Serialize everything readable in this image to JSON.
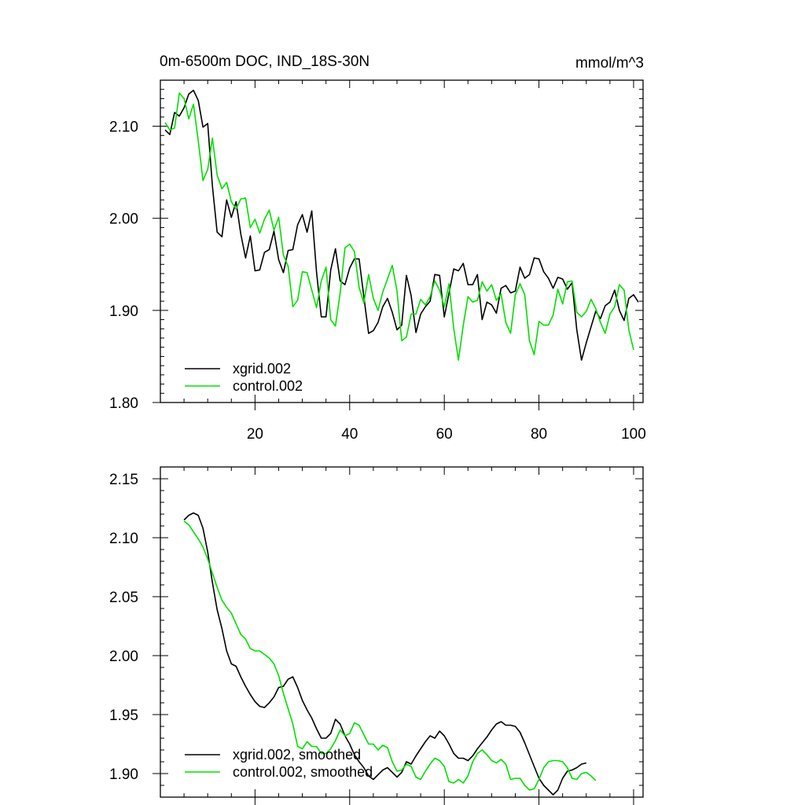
{
  "figure": {
    "title": "0m-6500m DOC, IND_18S-30N",
    "units": "mmol/m^3"
  },
  "colors": {
    "xgrid": "#000000",
    "control": "#00e000",
    "background": "#ffffff"
  },
  "chart_data": [
    {
      "type": "line",
      "title": "0m-6500m DOC, IND_18S-30N",
      "units_label": "mmol/m^3",
      "xlabel": "",
      "ylabel": "",
      "xlim": [
        0,
        102
      ],
      "ylim": [
        1.8,
        2.15
      ],
      "x_ticks": [
        20,
        40,
        60,
        80,
        100
      ],
      "x_tick_labels": [
        "20",
        "40",
        "60",
        "80",
        "100"
      ],
      "y_ticks": [
        1.8,
        1.9,
        2.0,
        2.1
      ],
      "y_tick_labels": [
        "1.80",
        "1.90",
        "2.00",
        "2.10"
      ],
      "legend_position": "bottom-left",
      "series": [
        {
          "name": "xgrid.002",
          "color": "#000000",
          "x_start": 1,
          "values": [
            2.096,
            2.091,
            2.115,
            2.111,
            2.12,
            2.135,
            2.139,
            2.128,
            2.099,
            2.103,
            2.035,
            1.985,
            1.98,
            2.02,
            2.001,
            2.018,
            1.983,
            1.957,
            1.981,
            1.943,
            1.944,
            1.963,
            1.966,
            1.986,
            1.955,
            1.941,
            1.965,
            1.966,
            1.993,
            2.004,
            1.985,
            2.008,
            1.942,
            1.893,
            1.893,
            1.944,
            1.967,
            1.932,
            1.928,
            1.946,
            1.956,
            1.956,
            1.915,
            1.875,
            1.878,
            1.887,
            1.904,
            1.913,
            1.898,
            1.879,
            1.884,
            1.938,
            1.916,
            1.876,
            1.896,
            1.904,
            1.91,
            1.939,
            1.938,
            1.893,
            1.919,
            1.945,
            1.943,
            1.951,
            1.928,
            1.928,
            1.939,
            1.89,
            1.909,
            1.906,
            1.897,
            1.924,
            1.927,
            1.919,
            1.921,
            1.947,
            1.935,
            1.939,
            1.957,
            1.956,
            1.942,
            1.935,
            1.924,
            1.936,
            1.934,
            1.923,
            1.93,
            1.879,
            1.846,
            1.865,
            1.882,
            1.899,
            1.891,
            1.905,
            1.909,
            1.922,
            1.9,
            1.889,
            1.913,
            1.917,
            1.909
          ]
        },
        {
          "name": "control.002",
          "color": "#00e000",
          "x_start": 1,
          "values": [
            2.104,
            2.096,
            2.098,
            2.136,
            2.13,
            2.108,
            2.124,
            2.084,
            2.041,
            2.053,
            2.087,
            2.047,
            2.032,
            2.039,
            2.018,
            2.01,
            2.021,
            2.022,
            1.99,
            1.999,
            1.984,
            1.999,
            2.009,
            1.987,
            2.001,
            1.96,
            1.948,
            1.904,
            1.911,
            1.942,
            1.941,
            1.922,
            1.903,
            1.932,
            1.947,
            1.89,
            1.883,
            1.919,
            1.968,
            1.972,
            1.964,
            1.925,
            1.908,
            1.939,
            1.913,
            1.9,
            1.92,
            1.934,
            1.949,
            1.921,
            1.867,
            1.871,
            1.896,
            1.896,
            1.912,
            1.906,
            1.915,
            1.932,
            1.922,
            1.904,
            1.929,
            1.88,
            1.846,
            1.884,
            1.915,
            1.909,
            1.911,
            1.931,
            1.921,
            1.928,
            1.911,
            1.918,
            1.887,
            1.875,
            1.917,
            1.929,
            1.917,
            1.867,
            1.852,
            1.888,
            1.884,
            1.884,
            1.895,
            1.923,
            1.907,
            1.931,
            1.932,
            1.898,
            1.893,
            1.899,
            1.912,
            1.902,
            1.887,
            1.875,
            1.896,
            1.904,
            1.928,
            1.922,
            1.879,
            1.857
          ]
        }
      ]
    },
    {
      "type": "line",
      "title": "",
      "xlabel": "",
      "ylabel": "",
      "xlim": [
        0,
        102
      ],
      "ylim": [
        1.88,
        2.16
      ],
      "x_ticks": [
        20,
        40,
        60,
        80,
        100
      ],
      "x_tick_labels": [
        "",
        "",
        "",
        "",
        ""
      ],
      "y_ticks": [
        1.9,
        1.95,
        2.0,
        2.05,
        2.1,
        2.15
      ],
      "y_tick_labels": [
        "1.90",
        "1.95",
        "2.00",
        "2.05",
        "2.10",
        "2.15"
      ],
      "legend_position": "bottom-left",
      "series": [
        {
          "name": "xgrid.002, smoothed",
          "color": "#000000",
          "x_start": 5,
          "values": [
            2.115,
            2.119,
            2.121,
            2.119,
            2.108,
            2.088,
            2.062,
            2.039,
            2.023,
            2.004,
            1.993,
            1.991,
            1.982,
            1.974,
            1.967,
            1.961,
            1.957,
            1.956,
            1.96,
            1.965,
            1.973,
            1.974,
            1.98,
            1.982,
            1.973,
            1.962,
            1.954,
            1.947,
            1.938,
            1.93,
            1.93,
            1.934,
            1.946,
            1.942,
            1.932,
            1.925,
            1.916,
            1.91,
            1.905,
            1.898,
            1.895,
            1.899,
            1.903,
            1.905,
            1.901,
            1.897,
            1.901,
            1.91,
            1.908,
            1.915,
            1.921,
            1.927,
            1.932,
            1.93,
            1.936,
            1.932,
            1.925,
            1.917,
            1.913,
            1.913,
            1.911,
            1.915,
            1.921,
            1.926,
            1.931,
            1.937,
            1.942,
            1.944,
            1.941,
            1.941,
            1.94,
            1.935,
            1.926,
            1.916,
            1.906,
            1.896,
            1.89,
            1.886,
            1.882,
            1.886,
            1.896,
            1.902,
            1.903,
            1.905,
            1.908,
            1.909
          ]
        },
        {
          "name": "control.002, smoothed",
          "color": "#00e000",
          "x_start": 5,
          "values": [
            2.114,
            2.111,
            2.105,
            2.099,
            2.092,
            2.082,
            2.07,
            2.058,
            2.047,
            2.041,
            2.036,
            2.027,
            2.018,
            2.014,
            2.006,
            2.004,
            2.004,
            2.001,
            1.998,
            1.993,
            1.983,
            1.968,
            1.955,
            1.942,
            1.923,
            1.921,
            1.927,
            1.923,
            1.923,
            1.917,
            1.917,
            1.921,
            1.928,
            1.937,
            1.932,
            1.934,
            1.943,
            1.941,
            1.933,
            1.925,
            1.925,
            1.92,
            1.924,
            1.922,
            1.91,
            1.902,
            1.903,
            1.908,
            1.906,
            1.897,
            1.895,
            1.902,
            1.908,
            1.913,
            1.911,
            1.906,
            1.893,
            1.892,
            1.895,
            1.892,
            1.898,
            1.91,
            1.917,
            1.92,
            1.916,
            1.911,
            1.909,
            1.912,
            1.908,
            1.895,
            1.896,
            1.896,
            1.89,
            1.886,
            1.887,
            1.895,
            1.905,
            1.91,
            1.911,
            1.911,
            1.91,
            1.905,
            1.896,
            1.895,
            1.9,
            1.901,
            1.898,
            1.894
          ]
        }
      ]
    }
  ]
}
